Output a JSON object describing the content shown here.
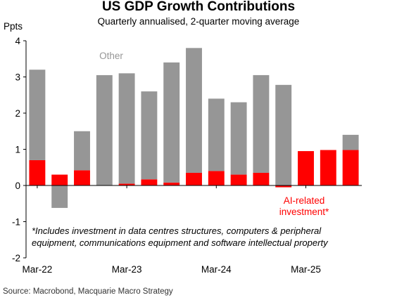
{
  "chart_data": {
    "type": "bar",
    "stacked": true,
    "title": "US GDP Growth Contributions",
    "subtitle": "Quarterly annualised, 2-quarter moving average",
    "ylabel": "Ppts",
    "ylim": [
      -2,
      4
    ],
    "yticks": [
      -2,
      -1,
      0,
      1,
      2,
      3,
      4
    ],
    "x_tick_labels": [
      "Mar-22",
      "Mar-23",
      "Mar-24",
      "Mar-25"
    ],
    "x_tick_positions": [
      0,
      4,
      8,
      12
    ],
    "categories": [
      "Q1-22",
      "Q2-22",
      "Q3-22",
      "Q4-22",
      "Q1-23",
      "Q2-23",
      "Q3-23",
      "Q4-23",
      "Q1-24",
      "Q2-24",
      "Q3-24",
      "Q4-24",
      "Q1-25",
      "Q2-25",
      "Q3-25"
    ],
    "series": [
      {
        "name": "AI-related investment*",
        "color": "#ff0000",
        "values": [
          0.7,
          0.3,
          0.42,
          0.0,
          0.05,
          0.17,
          0.08,
          0.35,
          0.4,
          0.3,
          0.35,
          -0.05,
          0.95,
          0.98,
          0.98
        ]
      },
      {
        "name": "Other",
        "color": "#969696",
        "values": [
          2.5,
          -0.62,
          1.08,
          3.05,
          3.05,
          2.43,
          3.32,
          3.45,
          2.0,
          2.0,
          2.7,
          2.78,
          0.0,
          0.0,
          0.42
        ]
      }
    ],
    "grid": false,
    "legend": "inline labels",
    "annotations": {
      "other_label": "Other",
      "ai_label_line1": "AI-related",
      "ai_label_line2": "investment*",
      "note_line1": "*Includes investment in data centres structures, computers & peripheral",
      "note_line2": "equipment, communications equipment and software intellectual property"
    },
    "source": "Source: Macrobond, Macquarie Macro Strategy"
  }
}
